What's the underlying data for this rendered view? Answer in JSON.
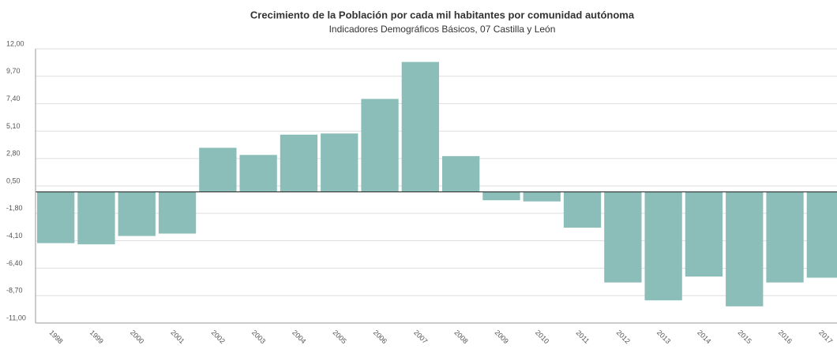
{
  "chart_data": {
    "type": "bar",
    "title": "Crecimiento de la Población por cada mil habitantes por comunidad autónoma",
    "subtitle": "Indicadores Demográficos Básicos, 07 Castilla y León",
    "categories": [
      "1998",
      "1999",
      "2000",
      "2001",
      "2002",
      "2003",
      "2004",
      "2005",
      "2006",
      "2007",
      "2008",
      "2009",
      "2010",
      "2011",
      "2012",
      "2013",
      "2014",
      "2015",
      "2016",
      "2017"
    ],
    "values": [
      -4.3,
      -4.4,
      -3.7,
      -3.5,
      3.7,
      3.1,
      4.8,
      4.9,
      7.8,
      10.9,
      3.0,
      -0.7,
      -0.8,
      -3.0,
      -7.6,
      -9.1,
      -7.1,
      -9.6,
      -7.6,
      -7.2
    ],
    "color": "#8bbdb9",
    "ylim": [
      -11,
      12
    ],
    "yticks": [
      {
        "value": -11,
        "label": "-11,00"
      },
      {
        "value": -8.7,
        "label": "-8,70"
      },
      {
        "value": -6.4,
        "label": "-6,40"
      },
      {
        "value": -4.1,
        "label": "-4,10"
      },
      {
        "value": -1.8,
        "label": "-1,80"
      },
      {
        "value": 0.5,
        "label": "0,50"
      },
      {
        "value": 2.8,
        "label": "2,80"
      },
      {
        "value": 5.1,
        "label": "5,10"
      },
      {
        "value": 7.4,
        "label": "7,40"
      },
      {
        "value": 9.7,
        "label": "9,70"
      },
      {
        "value": 12,
        "label": "12,00"
      }
    ],
    "grid": true
  }
}
